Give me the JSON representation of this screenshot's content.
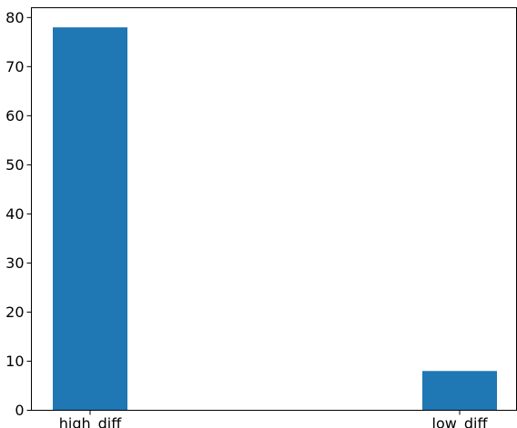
{
  "chart_data": {
    "type": "bar",
    "categories": [
      "high_diff",
      "low_diff"
    ],
    "values": [
      78,
      8
    ],
    "ylim": [
      0,
      82
    ],
    "yticks": [
      0,
      10,
      20,
      30,
      40,
      50,
      60,
      70,
      80
    ],
    "color": "#1f77b4",
    "grid": false,
    "title": "",
    "xlabel": "",
    "ylabel": ""
  }
}
